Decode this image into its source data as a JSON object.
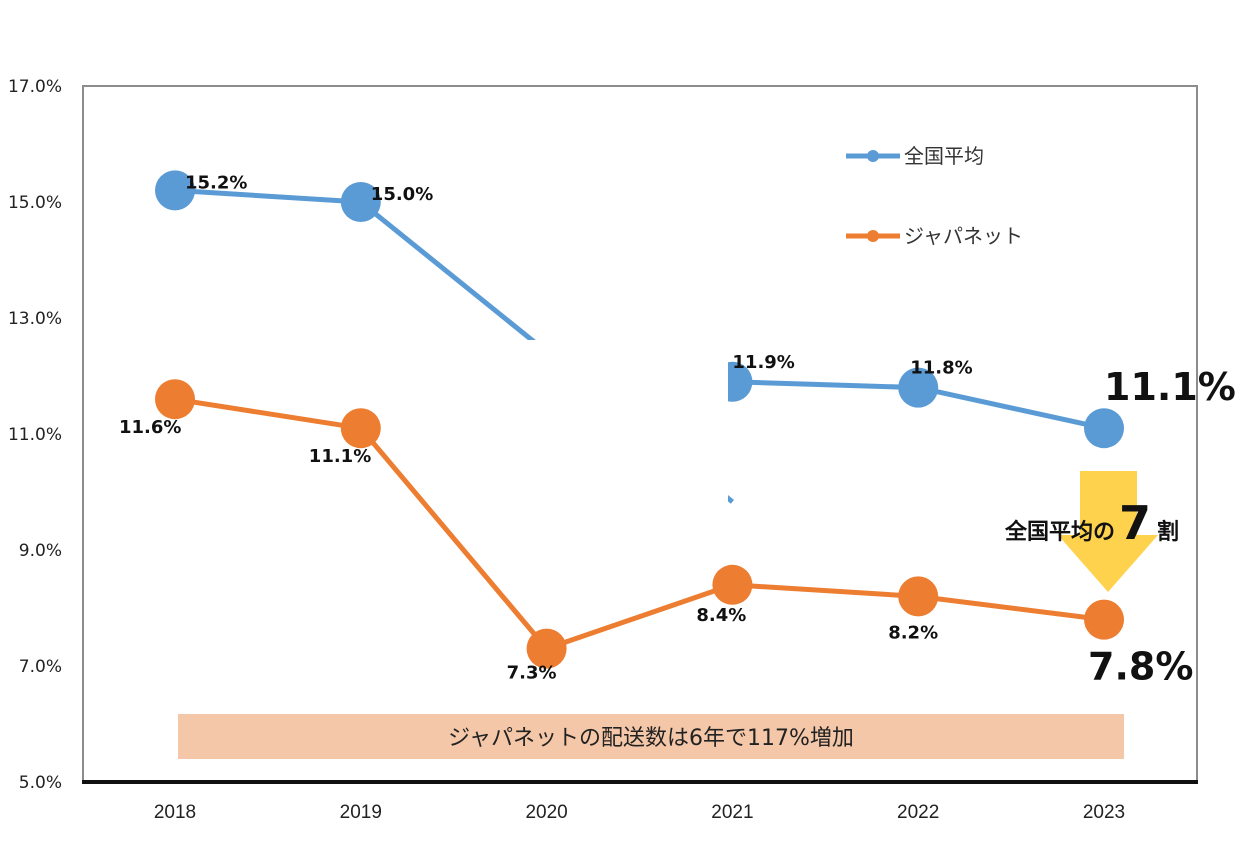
{
  "chart_data": {
    "type": "line",
    "title": "",
    "xlabel": "",
    "ylabel": "",
    "categories": [
      "2018",
      "2019",
      "2020",
      "2021",
      "2022",
      "2023"
    ],
    "ylim": [
      5.0,
      17.0
    ],
    "yticks": [
      "5.0%",
      "7.0%",
      "9.0%",
      "11.0%",
      "13.0%",
      "15.0%",
      "17.0%"
    ],
    "grid": false,
    "legend_position": "top-right",
    "series": [
      {
        "name": "全国平均",
        "color": "#5B9BD5",
        "values": [
          15.2,
          15.0,
          null,
          11.9,
          11.8,
          11.1
        ],
        "labels": [
          "15.2%",
          "15.0%",
          "",
          "11.9%",
          "11.8%",
          "11.1%"
        ]
      },
      {
        "name": "ジャパネット",
        "color": "#ED7D31",
        "values": [
          11.6,
          11.1,
          7.3,
          8.4,
          8.2,
          7.8
        ],
        "labels": [
          "11.6%",
          "11.1%",
          "7.3%",
          "8.4%",
          "8.2%",
          "7.8%"
        ]
      }
    ],
    "annotations": {
      "note_banner": "ジャパネットの配送数は6年で117%増加",
      "note_banner_color": "#F4C7A8",
      "ratio_prefix": "全国平均の",
      "ratio_number": "7",
      "ratio_suffix": "割",
      "arrow_color": "#FFD24D"
    }
  }
}
